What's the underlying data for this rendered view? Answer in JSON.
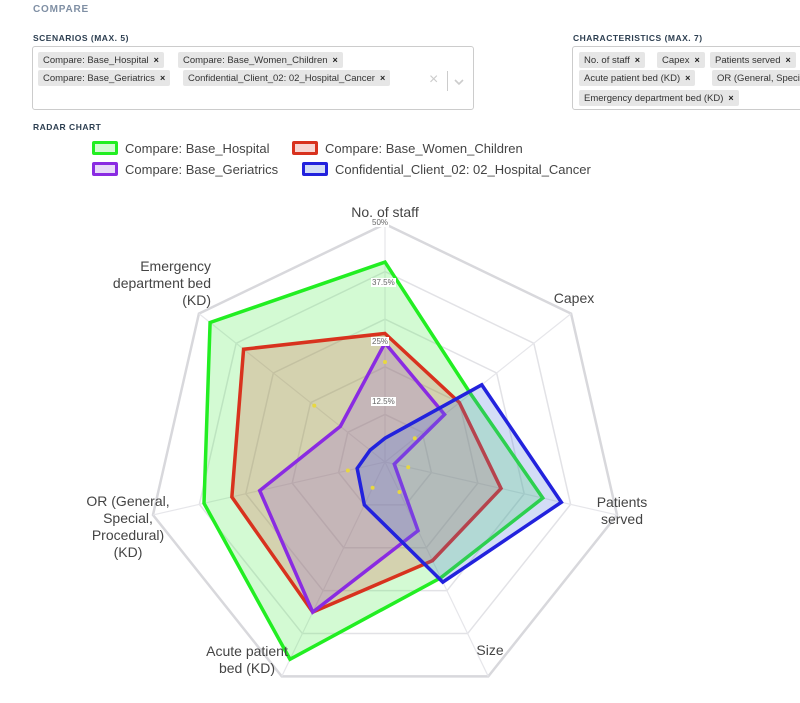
{
  "compare": {
    "title": "COMPARE"
  },
  "scenarios": {
    "label": "SCENARIOS (MAX. 5)",
    "tags": [
      "Compare: Base_Hospital",
      "Compare: Base_Women_Children",
      "Compare: Base_Geriatrics",
      "Confidential_Client_02: 02_Hospital_Cancer"
    ],
    "remove_glyph": "×",
    "clear_glyph": "×"
  },
  "characteristics": {
    "label": "CHARACTERISTICS (MAX. 7)",
    "tags": [
      "No. of staff",
      "Capex",
      "Patients served",
      "Acute patient bed (KD)",
      "OR (General, Special",
      "Emergency department bed (KD)"
    ],
    "remove_glyph": "×"
  },
  "radar": {
    "title": "RADAR CHART"
  },
  "chart_data": {
    "type": "radar",
    "axes": [
      "No. of staff",
      "Capex",
      "Patients\nserved",
      "Size",
      "Acute patient\nbed (KD)",
      "OR (General,\nSpecial,\nProcedural)\n(KD)",
      "Emergency\ndepartment bed\n(KD)"
    ],
    "tick_labels": [
      "12.5%",
      "25%",
      "37.5%",
      "50%"
    ],
    "range": [
      0,
      50
    ],
    "series": [
      {
        "name": "Compare: Base_Hospital",
        "color": "#22ee22",
        "fill": "rgba(80,235,80,0.25)",
        "values": [
          42,
          23,
          34,
          27,
          46,
          39,
          47
        ]
      },
      {
        "name": "Compare: Base_Women_Children",
        "color": "#d8321e",
        "fill": "rgba(220,70,50,0.22)",
        "values": [
          27,
          20,
          25,
          23,
          35,
          33,
          38
        ]
      },
      {
        "name": "Compare: Base_Geriatrics",
        "color": "#8a2be2",
        "fill": "rgba(140,70,220,0.20)",
        "values": [
          25,
          16,
          2,
          16,
          35,
          27,
          12
        ]
      },
      {
        "name": "Confidential_Client_02: 02_Hospital_Cancer",
        "color": "#2222dd",
        "fill": "rgba(80,120,220,0.25)",
        "values": [
          5,
          26,
          38,
          28,
          10,
          6,
          4
        ]
      }
    ]
  }
}
